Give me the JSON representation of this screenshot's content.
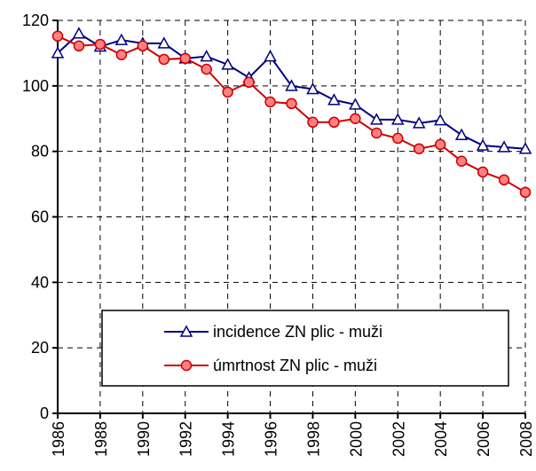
{
  "chart_data": {
    "type": "line",
    "x": [
      1986,
      1987,
      1988,
      1989,
      1990,
      1991,
      1992,
      1993,
      1994,
      1995,
      1996,
      1997,
      1998,
      1999,
      2000,
      2001,
      2002,
      2003,
      2004,
      2005,
      2006,
      2007,
      2008
    ],
    "series": [
      {
        "name": "incidence ZN plic - muži",
        "color": "#000080",
        "marker": "triangle",
        "values": [
          110,
          116,
          112,
          114,
          113,
          113,
          108.4,
          109,
          106.5,
          102.5,
          109,
          100,
          99,
          95.7,
          94.3,
          89.7,
          89.7,
          88.6,
          89.5,
          85,
          81.8,
          81.3,
          80.8
        ]
      },
      {
        "name": "úmrtnost ZN plic - muži",
        "color": "#cc0000",
        "marker": "circle",
        "values": [
          115.2,
          112.2,
          112.7,
          109.5,
          112.2,
          108.1,
          108.4,
          105.1,
          98.1,
          101.1,
          95.1,
          94.6,
          88.9,
          88.9,
          90,
          85.6,
          84,
          80.8,
          82.1,
          77,
          73.7,
          71.3,
          67.5
        ]
      }
    ],
    "xlim": [
      1986,
      2008
    ],
    "xticks": [
      1986,
      1988,
      1990,
      1992,
      1994,
      1996,
      1998,
      2000,
      2002,
      2004,
      2006,
      2008
    ],
    "ylim": [
      0,
      120
    ],
    "yticks": [
      0,
      20,
      40,
      60,
      80,
      100,
      120
    ],
    "grid": true,
    "legend": "lower center"
  }
}
